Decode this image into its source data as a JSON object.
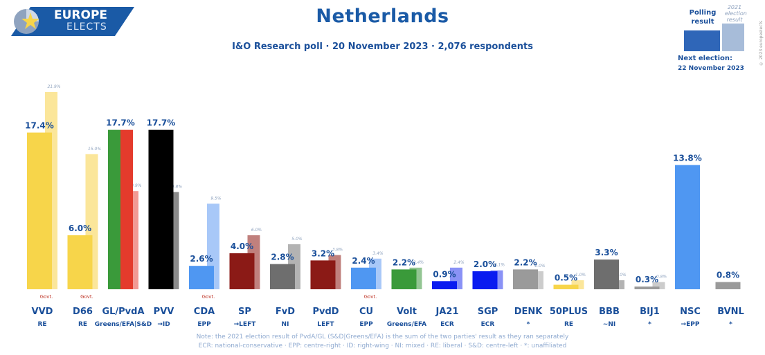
{
  "header": {
    "logo_line1": "EUROPE",
    "logo_line2": "ELECTS",
    "title": "Netherlands",
    "subtitle": "I&O Research poll · 20 November 2023 · 2,076 respondents"
  },
  "legend": {
    "polling_label": "Polling result",
    "previous_label": "2021 election result",
    "next_election_label": "Next election:",
    "next_election_date": "22 November 2023",
    "copyright": "© 2023 europeelects"
  },
  "notes": {
    "line1": "Note: the 2021 election result of PvdA/GL (S&D|Greens/EFA) is the sum of the two parties' result as they ran separately",
    "line2": "ECR: national-conservative · EPP: centre-right · ID: right-wing · NI: mixed · RE: liberal · S&D: centre-left · *: unaffiliated"
  },
  "chart_data": {
    "type": "bar",
    "title": "Netherlands",
    "ylabel": "",
    "ylim": [
      0,
      21.9
    ],
    "govt_label": "Govt.",
    "categories": [
      "VVD",
      "D66",
      "GL/PvdA",
      "PVV",
      "CDA",
      "SP",
      "FvD",
      "PvdD",
      "CU",
      "Volt",
      "JA21",
      "SGP",
      "DENK",
      "50PLUS",
      "BBB",
      "BIJ1",
      "NSC",
      "BVNL"
    ],
    "groups": [
      "RE",
      "RE",
      "Greens/EFA|S&D",
      "→ID",
      "EPP",
      "→LEFT",
      "NI",
      "LEFT",
      "EPP",
      "Greens/EFA",
      "ECR",
      "ECR",
      "*",
      "RE",
      "~NI",
      "*",
      "→EPP",
      "*"
    ],
    "series": [
      {
        "name": "Polling result",
        "values": [
          17.4,
          6.0,
          17.7,
          17.7,
          2.6,
          4.0,
          2.8,
          3.2,
          2.4,
          2.2,
          0.9,
          2.0,
          2.2,
          0.5,
          3.3,
          0.3,
          13.8,
          0.8
        ],
        "labels": [
          "17.4%",
          "6.0%",
          "17.7%",
          "17.7%",
          "2.6%",
          "4.0%",
          "2.8%",
          "3.2%",
          "2.4%",
          "2.2%",
          "0.9%",
          "2.0%",
          "2.2%",
          "0.5%",
          "3.3%",
          "0.3%",
          "13.8%",
          "0.8%"
        ]
      },
      {
        "name": "2021 election result",
        "values": [
          21.9,
          15.0,
          10.9,
          10.8,
          9.5,
          6.0,
          5.0,
          3.8,
          3.4,
          2.4,
          2.4,
          2.1,
          2.0,
          1.0,
          1.0,
          0.8,
          null,
          null
        ],
        "labels": [
          "21.9%",
          "15.0%",
          "10.9%",
          "10.8%",
          "9.5%",
          "6.0%",
          "5.0%",
          "3.8%",
          "3.4%",
          "2.4%",
          "2.4%",
          "2.1%",
          "2.0%",
          "1.0%",
          "1.0%",
          "0.8%",
          "",
          ""
        ]
      }
    ],
    "government": [
      true,
      true,
      false,
      false,
      true,
      false,
      false,
      false,
      true,
      false,
      false,
      false,
      false,
      false,
      false,
      false,
      false,
      false
    ],
    "colors": [
      "#f7d54a",
      "#f7d54a",
      [
        "#3a9a3a",
        "#e43b2c"
      ],
      "#000000",
      "#4f97f2",
      "#8b1a16",
      "#6e6e6e",
      "#8b1a16",
      "#4f97f2",
      "#3a9a3a",
      "#0a1bf0",
      "#0a1bf0",
      "#9a9a9a",
      "#f7d54a",
      "#6e6e6e",
      "#9a9a9a",
      "#4f97f2",
      "#9a9a9a"
    ],
    "prev_colors": [
      "#fbe69a",
      "#fbe69a",
      "#f29a94",
      "#8a8a8a",
      "#a8c8f8",
      "#c0807d",
      "#b3b3b3",
      "#c0807d",
      "#a8c8f8",
      "#93c593",
      "#8a92f6",
      "#8a92f6",
      "#cccccc",
      "#fbe69a",
      "#b3b3b3",
      "#cccccc",
      "",
      ""
    ],
    "accent": "#1a4f9a",
    "govt_color": "#c0392b"
  }
}
